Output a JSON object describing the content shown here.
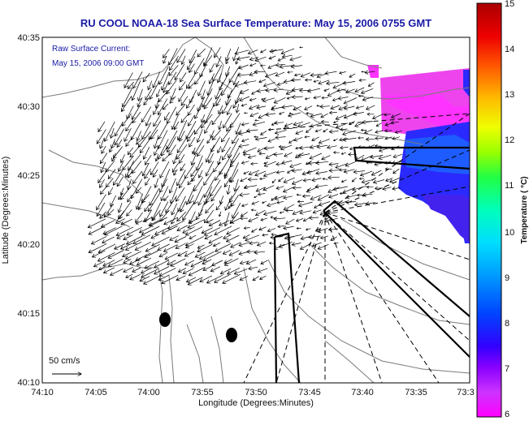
{
  "header": {
    "title": "RU COOL  NOAA-18  Sea Surface Temperature:  May 15, 2006 0755 GMT"
  },
  "annotations": {
    "current_label": "Raw Surface Current:",
    "current_time": "May 15, 2006 09:00 GMT",
    "scale_label": "50 cm/s"
  },
  "colors": {
    "title": "#1a1aa6",
    "vectors": "#000000",
    "coast": "#7a7a7a",
    "sst_warm": "#ff33ff",
    "sst_cool": "#2a2aff"
  },
  "chart_data": {
    "type": "map",
    "title": "RU COOL  NOAA-18  Sea Surface Temperature:  May 15, 2006 0755 GMT",
    "xlabel": "Longitude (Degrees:Minutes)",
    "ylabel": "Latitude (Degrees:Minutes)",
    "x_ticks": [
      "74:10",
      "74:05",
      "74:00",
      "73:55",
      "73:50",
      "73:45",
      "73:40",
      "73:35",
      "73:3"
    ],
    "y_ticks": [
      "40:35",
      "40:30",
      "40:25",
      "40:20",
      "40:15",
      "40:10"
    ],
    "xlim": [
      -74.1667,
      -73.5
    ],
    "ylim": [
      40.1667,
      40.5833
    ],
    "colorbar": {
      "label": "Temperature ( °C)",
      "ticks": [
        "15",
        "14",
        "13",
        "12",
        "11",
        "10",
        "9",
        "8",
        "7",
        "6"
      ],
      "range": [
        6,
        15
      ]
    },
    "features": {
      "current_vectors": "surface current vectors",
      "markers": 2
    }
  }
}
